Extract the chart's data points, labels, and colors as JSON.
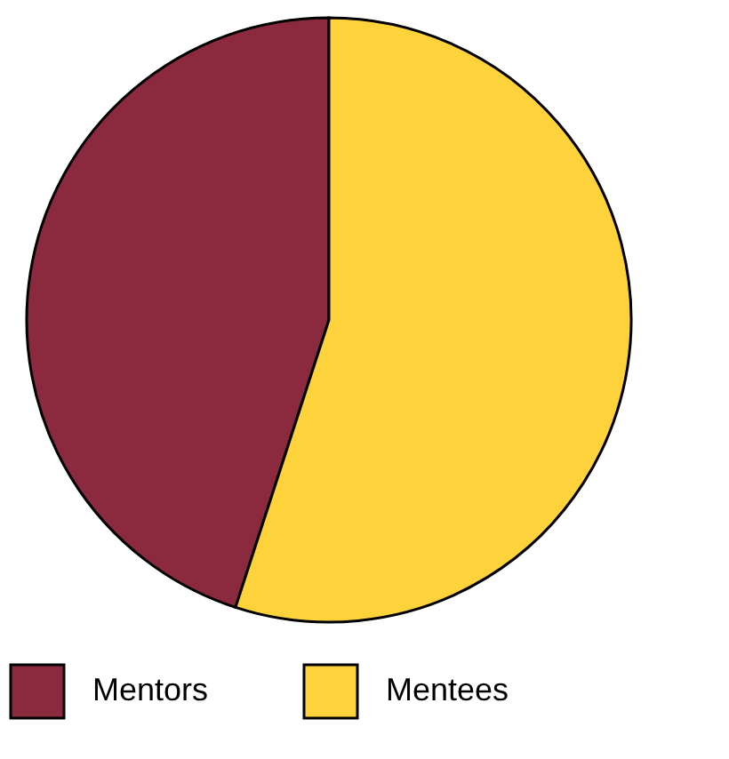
{
  "chart_data": {
    "type": "pie",
    "categories": [
      "Mentors",
      "Mentees"
    ],
    "values": [
      45,
      55
    ],
    "colors": [
      "#8b2a3e",
      "#fdd23a"
    ],
    "legend": "bottom"
  }
}
